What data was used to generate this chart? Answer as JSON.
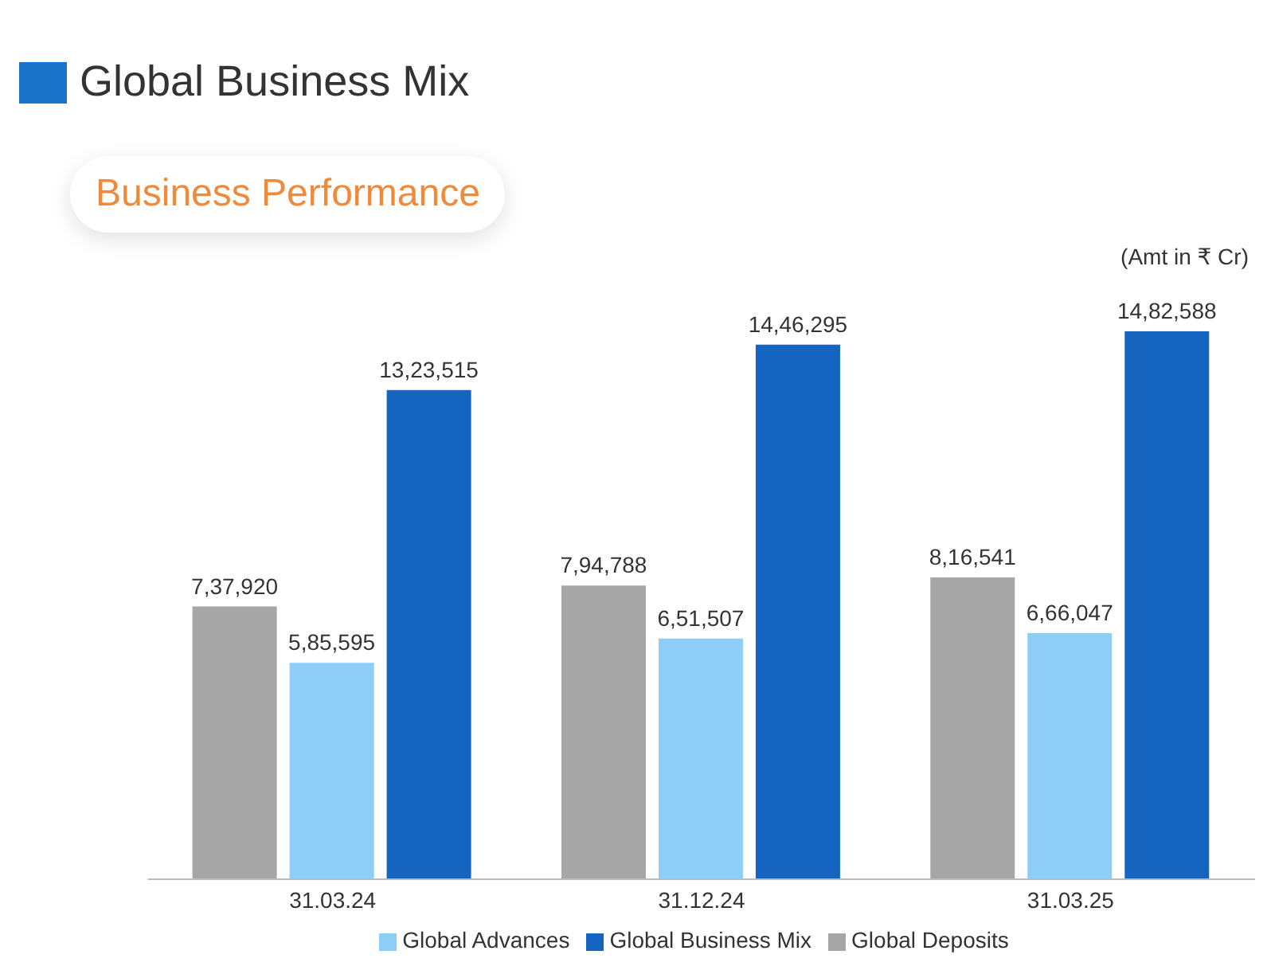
{
  "chart_data": {
    "type": "bar",
    "title": "Global Business Mix",
    "subtitle": "Business Performance",
    "annotations": [
      "(Amt in ₹ Cr)"
    ],
    "categories": [
      "31.03.24",
      "31.12.24",
      "31.03.25"
    ],
    "series": [
      {
        "name": "Global Deposits",
        "color": "#a6a6a6",
        "values": [
          737920,
          794788,
          816541
        ],
        "value_labels": [
          "7,37,920",
          "7,94,788",
          "8,16,541"
        ]
      },
      {
        "name": "Global Advances",
        "color": "#8ecdf7",
        "values": [
          585595,
          651507,
          666047
        ],
        "value_labels": [
          "5,85,595",
          "6,51,507",
          "6,66,047"
        ]
      },
      {
        "name": "Global Business Mix",
        "color": "#1565c0",
        "values": [
          1323515,
          1446295,
          1482588
        ],
        "value_labels": [
          "13,23,515",
          "14,46,295",
          "14,82,588"
        ]
      }
    ],
    "legend": "bottom",
    "grid": false
  }
}
